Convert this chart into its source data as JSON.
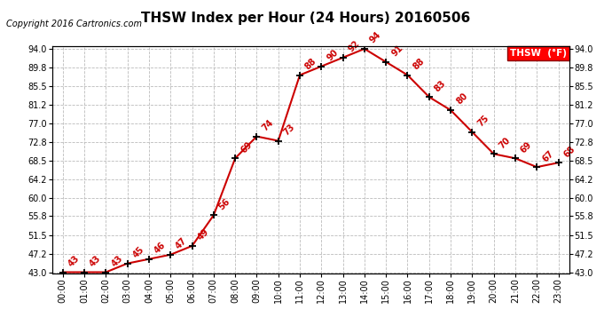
{
  "title": "THSW Index per Hour (24 Hours) 20160506",
  "copyright": "Copyright 2016 Cartronics.com",
  "legend_label": "THSW  (°F)",
  "hours": [
    0,
    1,
    2,
    3,
    4,
    5,
    6,
    7,
    8,
    9,
    10,
    11,
    12,
    13,
    14,
    15,
    16,
    17,
    18,
    19,
    20,
    21,
    22,
    23
  ],
  "values": [
    43,
    43,
    43,
    45,
    46,
    47,
    49,
    56,
    69,
    74,
    73,
    88,
    90,
    92,
    94,
    91,
    88,
    83,
    80,
    75,
    70,
    69,
    67,
    68
  ],
  "ylim_min": 43.0,
  "ylim_max": 94.0,
  "yticks": [
    43.0,
    47.2,
    51.5,
    55.8,
    60.0,
    64.2,
    68.5,
    72.8,
    77.0,
    81.2,
    85.5,
    89.8,
    94.0
  ],
  "line_color": "#cc0000",
  "marker_color": "#000000",
  "bg_color": "#ffffff",
  "grid_color": "#bbbbbb",
  "title_fontsize": 11,
  "copyright_fontsize": 7,
  "tick_fontsize": 7,
  "annotation_fontsize": 7,
  "legend_fontsize": 7.5
}
